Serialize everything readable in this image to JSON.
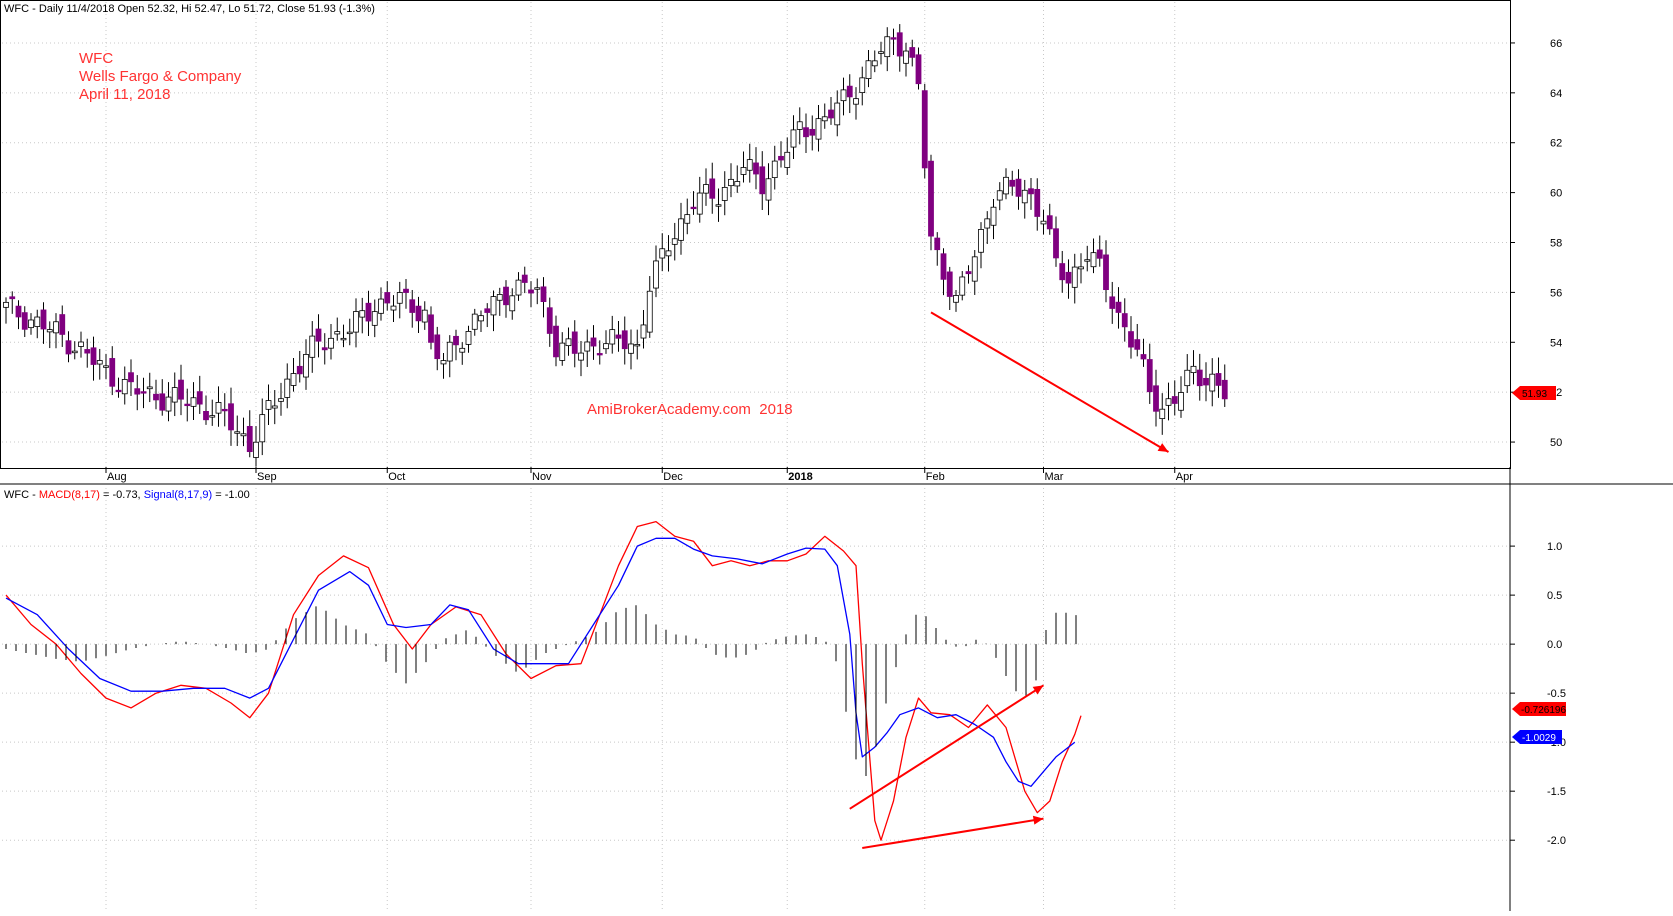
{
  "colors": {
    "up_candle": "#ffffff",
    "down_candle": "#800080",
    "wick": "#000000",
    "macd_line": "#ff0000",
    "signal_line": "#0000ff",
    "histogram": "#000000",
    "annotation": "#ff0000",
    "grid": "#c8c8c8",
    "axis": "#000000",
    "price_badge": "#ff0000",
    "signal_badge": "#0000ff"
  },
  "price_pane": {
    "header": "WFC - Daily 11/4/2018 Open 52.32, Hi 52.47, Lo 51.72, Close 51.93 (-1.3%)",
    "annotation_lines": [
      "WFC",
      "Wells Fargo & Company",
      "April 11, 2018"
    ],
    "watermark": "AmiBrokerAcademy.com  2018",
    "last_price_label": "51.93"
  },
  "macd_pane": {
    "header_prefix": "WFC - ",
    "macd_label": "MACD(8,17)",
    "macd_value_text": " = -0.73, ",
    "signal_label": "Signal(8,17,9)",
    "signal_value_text": " = -1.00",
    "macd_badge": "-0.726196",
    "signal_badge": "-1.0029"
  },
  "chart_data": [
    {
      "type": "candlestick",
      "title": "WFC - Daily",
      "ylim": [
        49,
        67
      ],
      "y_ticks": [
        50,
        52,
        54,
        56,
        58,
        60,
        62,
        64,
        66
      ],
      "x_labels": [
        {
          "label": "Aug",
          "index": 16
        },
        {
          "label": "Sep",
          "index": 40
        },
        {
          "label": "Oct",
          "index": 61
        },
        {
          "label": "Nov",
          "index": 84
        },
        {
          "label": "Dec",
          "index": 105
        },
        {
          "label": "2018",
          "index": 125,
          "bold": true
        },
        {
          "label": "Feb",
          "index": 147
        },
        {
          "label": "Mar",
          "index": 166
        },
        {
          "label": "Apr",
          "index": 187
        }
      ],
      "grid": true,
      "close_path": [
        [
          0,
          55.4
        ],
        [
          8,
          54.4
        ],
        [
          12,
          53.7
        ],
        [
          16,
          52.8
        ],
        [
          20,
          52.1
        ],
        [
          25,
          51.8
        ],
        [
          30,
          51.6
        ],
        [
          35,
          51.0
        ],
        [
          39,
          49.9
        ],
        [
          42,
          51.2
        ],
        [
          46,
          52.8
        ],
        [
          50,
          54.0
        ],
        [
          55,
          54.5
        ],
        [
          59,
          55.5
        ],
        [
          63,
          55.7
        ],
        [
          67,
          55.2
        ],
        [
          68,
          53.8
        ],
        [
          70,
          53.2
        ],
        [
          73,
          54.3
        ],
        [
          77,
          55.3
        ],
        [
          81,
          56.2
        ],
        [
          85,
          56.1
        ],
        [
          88,
          53.9
        ],
        [
          91,
          53.6
        ],
        [
          95,
          54.0
        ],
        [
          99,
          54.0
        ],
        [
          101,
          53.8
        ],
        [
          103,
          56.3
        ],
        [
          106,
          57.9
        ],
        [
          110,
          59.7
        ],
        [
          114,
          59.9
        ],
        [
          118,
          61.0
        ],
        [
          121,
          60.4
        ],
        [
          124,
          61.4
        ],
        [
          127,
          62.5
        ],
        [
          131,
          62.9
        ],
        [
          134,
          63.7
        ],
        [
          137,
          64.6
        ],
        [
          140,
          65.7
        ],
        [
          142,
          66.1
        ],
        [
          144,
          65.9
        ],
        [
          146,
          64.2
        ],
        [
          148,
          58.1
        ],
        [
          150,
          56.9
        ],
        [
          152,
          55.6
        ],
        [
          155,
          57.5
        ],
        [
          158,
          59.9
        ],
        [
          161,
          60.2
        ],
        [
          164,
          59.9
        ],
        [
          166,
          59.0
        ],
        [
          168,
          57.1
        ],
        [
          170,
          56.5
        ],
        [
          173,
          57.6
        ],
        [
          175,
          56.9
        ],
        [
          178,
          55.1
        ],
        [
          181,
          53.6
        ],
        [
          183,
          52.0
        ],
        [
          185,
          51.4
        ],
        [
          187,
          51.7
        ],
        [
          190,
          52.8
        ],
        [
          193,
          52.5
        ],
        [
          195,
          51.9
        ]
      ],
      "annotations": [
        {
          "type": "arrow",
          "from": [
            148,
            55.2
          ],
          "to": [
            186,
            49.6
          ],
          "color": "#ff0000"
        }
      ]
    },
    {
      "type": "line",
      "title": "MACD(8,17) / Signal(8,17,9)",
      "ylim": [
        -2.1,
        1.45
      ],
      "y_ticks": [
        -2.0,
        -1.5,
        -1.0,
        -0.5,
        0.0,
        0.5,
        1.0
      ],
      "grid": true,
      "series": [
        {
          "name": "MACD(8,17)",
          "color": "#ff0000",
          "points": [
            [
              0,
              0.5
            ],
            [
              4,
              0.2
            ],
            [
              8,
              0.0
            ],
            [
              12,
              -0.3
            ],
            [
              16,
              -0.55
            ],
            [
              20,
              -0.65
            ],
            [
              24,
              -0.5
            ],
            [
              28,
              -0.42
            ],
            [
              32,
              -0.45
            ],
            [
              36,
              -0.6
            ],
            [
              39,
              -0.75
            ],
            [
              42,
              -0.5
            ],
            [
              46,
              0.3
            ],
            [
              50,
              0.7
            ],
            [
              54,
              0.9
            ],
            [
              58,
              0.78
            ],
            [
              62,
              0.2
            ],
            [
              65,
              -0.05
            ],
            [
              68,
              0.2
            ],
            [
              72,
              0.38
            ],
            [
              76,
              0.3
            ],
            [
              80,
              -0.1
            ],
            [
              84,
              -0.35
            ],
            [
              88,
              -0.22
            ],
            [
              92,
              -0.2
            ],
            [
              95,
              0.3
            ],
            [
              98,
              0.8
            ],
            [
              101,
              1.2
            ],
            [
              104,
              1.25
            ],
            [
              107,
              1.1
            ],
            [
              110,
              1.05
            ],
            [
              113,
              0.8
            ],
            [
              116,
              0.85
            ],
            [
              119,
              0.8
            ],
            [
              122,
              0.85
            ],
            [
              125,
              0.85
            ],
            [
              128,
              0.92
            ],
            [
              131,
              1.1
            ],
            [
              134,
              0.95
            ],
            [
              136,
              0.8
            ],
            [
              137,
              -0.2
            ],
            [
              138,
              -1.0
            ],
            [
              139,
              -1.8
            ],
            [
              140,
              -2.0
            ],
            [
              142,
              -1.6
            ],
            [
              144,
              -0.95
            ],
            [
              146,
              -0.55
            ],
            [
              148,
              -0.7
            ],
            [
              151,
              -0.72
            ],
            [
              154,
              -0.85
            ],
            [
              157,
              -0.62
            ],
            [
              160,
              -0.85
            ],
            [
              163,
              -1.5
            ],
            [
              165,
              -1.72
            ],
            [
              167,
              -1.6
            ],
            [
              169,
              -1.2
            ],
            [
              171,
              -0.92
            ],
            [
              172,
              -0.73
            ]
          ]
        },
        {
          "name": "Signal(8,17,9)",
          "color": "#0000ff",
          "points": [
            [
              0,
              0.47
            ],
            [
              5,
              0.3
            ],
            [
              10,
              -0.05
            ],
            [
              15,
              -0.35
            ],
            [
              20,
              -0.48
            ],
            [
              25,
              -0.48
            ],
            [
              30,
              -0.45
            ],
            [
              35,
              -0.45
            ],
            [
              39,
              -0.55
            ],
            [
              42,
              -0.45
            ],
            [
              46,
              0.05
            ],
            [
              50,
              0.55
            ],
            [
              55,
              0.74
            ],
            [
              58,
              0.6
            ],
            [
              61,
              0.2
            ],
            [
              64,
              0.17
            ],
            [
              68,
              0.2
            ],
            [
              71,
              0.4
            ],
            [
              74,
              0.35
            ],
            [
              78,
              -0.05
            ],
            [
              82,
              -0.2
            ],
            [
              86,
              -0.2
            ],
            [
              90,
              -0.2
            ],
            [
              94,
              0.2
            ],
            [
              98,
              0.6
            ],
            [
              101,
              1.0
            ],
            [
              104,
              1.08
            ],
            [
              107,
              1.08
            ],
            [
              110,
              0.97
            ],
            [
              113,
              0.9
            ],
            [
              117,
              0.87
            ],
            [
              121,
              0.82
            ],
            [
              125,
              0.92
            ],
            [
              128,
              0.98
            ],
            [
              131,
              0.97
            ],
            [
              133,
              0.8
            ],
            [
              135,
              0.1
            ],
            [
              136,
              -0.7
            ],
            [
              137,
              -1.15
            ],
            [
              139,
              -1.05
            ],
            [
              141,
              -0.9
            ],
            [
              143,
              -0.72
            ],
            [
              146,
              -0.65
            ],
            [
              149,
              -0.75
            ],
            [
              152,
              -0.72
            ],
            [
              155,
              -0.82
            ],
            [
              158,
              -0.95
            ],
            [
              160,
              -1.2
            ],
            [
              162,
              -1.4
            ],
            [
              164,
              -1.45
            ],
            [
              166,
              -1.3
            ],
            [
              168,
              -1.15
            ],
            [
              171,
              -1.0
            ]
          ]
        },
        {
          "name": "Histogram",
          "color": "#000000",
          "type": "bar",
          "points": [
            [
              0,
              -0.05
            ],
            [
              4,
              -0.1
            ],
            [
              8,
              -0.15
            ],
            [
              12,
              -0.18
            ],
            [
              16,
              -0.12
            ],
            [
              20,
              -0.05
            ],
            [
              24,
              0.0
            ],
            [
              28,
              0.03
            ],
            [
              32,
              0.0
            ],
            [
              36,
              -0.05
            ],
            [
              39,
              -0.1
            ],
            [
              42,
              -0.05
            ],
            [
              46,
              0.25
            ],
            [
              50,
              0.4
            ],
            [
              54,
              0.2
            ],
            [
              58,
              0.1
            ],
            [
              61,
              -0.2
            ],
            [
              64,
              -0.4
            ],
            [
              67,
              -0.2
            ],
            [
              70,
              0.05
            ],
            [
              74,
              0.15
            ],
            [
              78,
              -0.1
            ],
            [
              82,
              -0.3
            ],
            [
              86,
              -0.1
            ],
            [
              90,
              0.0
            ],
            [
              94,
              0.1
            ],
            [
              98,
              0.35
            ],
            [
              101,
              0.4
            ],
            [
              104,
              0.2
            ],
            [
              107,
              0.1
            ],
            [
              110,
              0.08
            ],
            [
              113,
              -0.1
            ],
            [
              116,
              -0.15
            ],
            [
              119,
              -0.1
            ],
            [
              122,
              0.03
            ],
            [
              125,
              0.08
            ],
            [
              128,
              0.1
            ],
            [
              131,
              0.05
            ],
            [
              133,
              -0.2
            ],
            [
              135,
              -0.9
            ],
            [
              137,
              -1.45
            ],
            [
              139,
              -1.1
            ],
            [
              141,
              -0.55
            ],
            [
              143,
              -0.1
            ],
            [
              145,
              0.3
            ],
            [
              147,
              0.3
            ],
            [
              149,
              0.15
            ],
            [
              151,
              0.0
            ],
            [
              153,
              -0.05
            ],
            [
              155,
              0.05
            ],
            [
              157,
              0.0
            ],
            [
              159,
              -0.2
            ],
            [
              161,
              -0.45
            ],
            [
              163,
              -0.55
            ],
            [
              165,
              -0.35
            ],
            [
              166,
              0.1
            ],
            [
              168,
              0.32
            ],
            [
              170,
              0.32
            ],
            [
              172,
              0.28
            ]
          ]
        }
      ],
      "annotations": [
        {
          "type": "arrow",
          "from": [
            135,
            -1.68
          ],
          "to": [
            166,
            -0.42
          ],
          "color": "#ff0000"
        },
        {
          "type": "arrow",
          "from": [
            137,
            -2.08
          ],
          "to": [
            166,
            -1.78
          ],
          "color": "#ff0000"
        }
      ]
    }
  ]
}
